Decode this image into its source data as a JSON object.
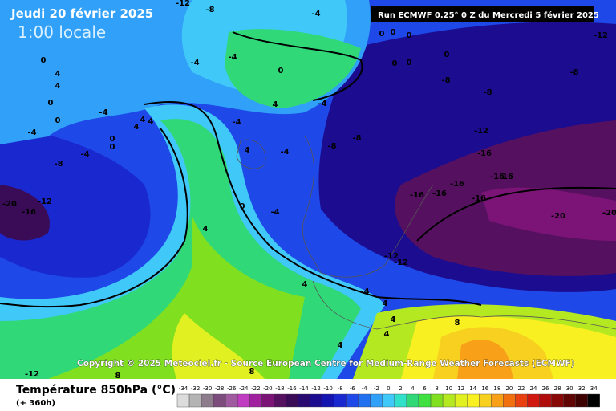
{
  "header": {
    "date": "Jeudi 20 février 2025",
    "time": "1:00 locale",
    "run": "Run ECMWF 0.25° 0 Z du Mercredi 5 février 2025"
  },
  "copyright": "Copyright © 2025 Meteociel.fr - Source European Centre for Medium-Range Weather Forecasts (ECMWF)",
  "legend": {
    "title": "Température 850hPa (°C)",
    "subtitle": "(+ 360h)",
    "ticks": [
      -34,
      -32,
      -30,
      -28,
      -26,
      -24,
      -22,
      -20,
      -18,
      -16,
      -14,
      -12,
      -10,
      -8,
      -6,
      -4,
      -2,
      0,
      2,
      4,
      6,
      8,
      10,
      12,
      14,
      16,
      18,
      20,
      22,
      24,
      26,
      28,
      30,
      32,
      34
    ],
    "colors": [
      "#dcdcdc",
      "#b4b4b4",
      "#8c7c8c",
      "#7c4c7c",
      "#a05aa0",
      "#c03cc0",
      "#a020a0",
      "#7c1478",
      "#561060",
      "#3a0c58",
      "#280a70",
      "#1c0c90",
      "#1414b0",
      "#1a28d0",
      "#1e48e8",
      "#2070f0",
      "#30a0f8",
      "#40c8f8",
      "#30e0c8",
      "#30d878",
      "#40e040",
      "#80e020",
      "#b4e820",
      "#e0f020",
      "#f8f020",
      "#f8d020",
      "#f8a018",
      "#f07010",
      "#e84010",
      "#d01810",
      "#b00c0c",
      "#880808",
      "#600404",
      "#3c0000",
      "#000000"
    ]
  },
  "contour_labels": [
    "-12",
    "-8",
    "-4",
    "-12",
    "0",
    "0",
    "0",
    "0",
    "0",
    "0",
    "0",
    "-4",
    "-4",
    "0",
    "4",
    "4",
    "0",
    "0",
    "-4",
    "-4",
    "-4",
    "0",
    "0",
    "4",
    "4",
    "4",
    "-8",
    "-12",
    "-20",
    "-16",
    "4",
    "-4",
    "-4",
    "4",
    "-4",
    "-8",
    "-8",
    "-8",
    "-8",
    "-8",
    "-12",
    "-16",
    "-16",
    "16",
    "-16",
    "-16",
    "-16",
    "-16",
    "-20",
    "-20",
    "0",
    "-4",
    "4",
    "-12",
    "-12",
    "4",
    "-4",
    "4",
    "4",
    "4",
    "4",
    "8",
    "-12",
    "8",
    "8"
  ]
}
